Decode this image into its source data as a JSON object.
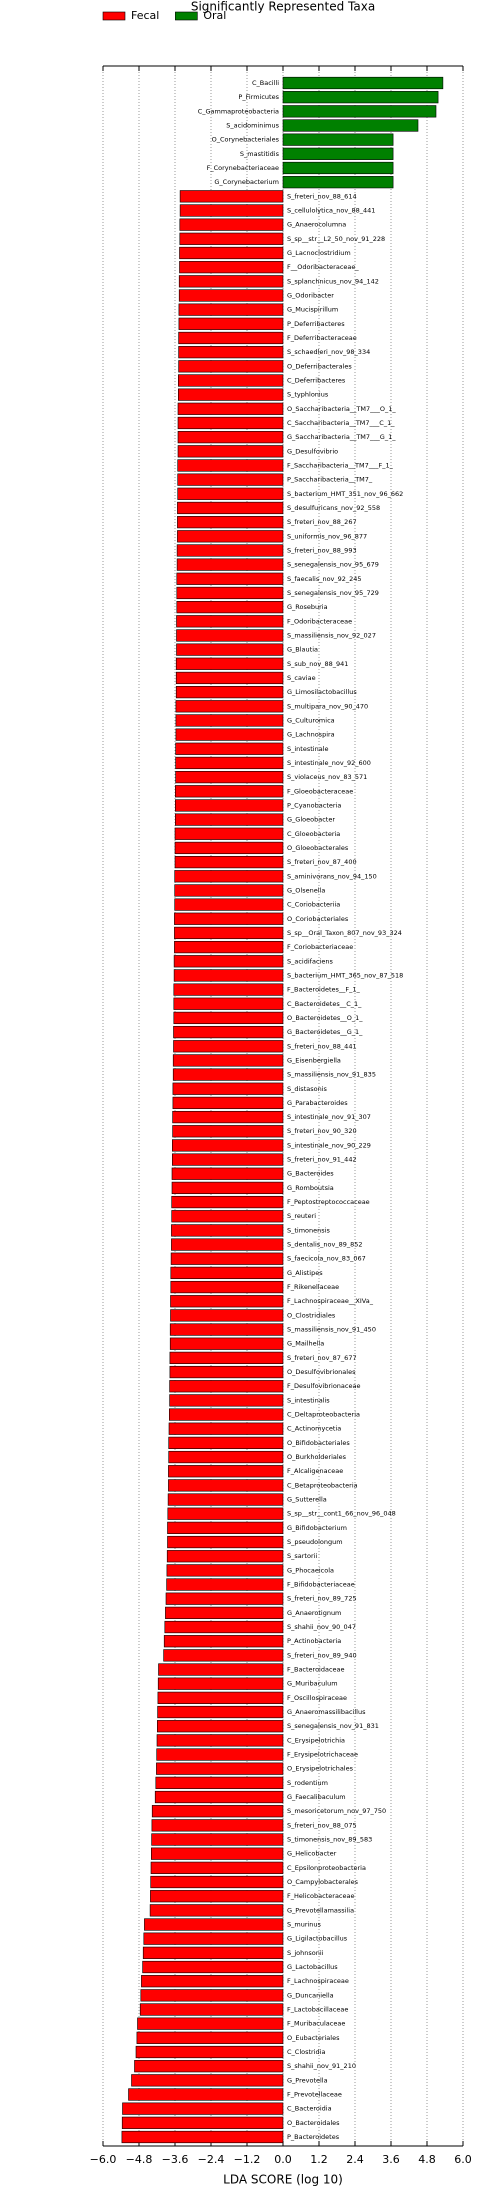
{
  "chart_data": {
    "type": "bar",
    "orientation": "horizontal",
    "title": "Significantly Represented Taxa",
    "x_label": "LDA SCORE (log 10)",
    "legend": "upper left",
    "grid": true,
    "categories": [
      "C_Bacilli",
      "P_Firmicutes",
      "C_Gammaproteobacteria",
      "S_acidominimus",
      "O_Corynebacteriales",
      "S_mastitidis",
      "F_Corynebacteriaceae",
      "G_Corynebacterium",
      "S_freteri_nov_88_614",
      "S_cellulolytica_nov_88_441",
      "G_Anaerocolumna",
      "S_sp__str__L2_50_nov_91_228",
      "G_Lacnoclostridium",
      "F__Odoribacteraceae_",
      "S_splanchnicus_nov_94_142",
      "G_Odoribacter",
      "G_Mucispirillum",
      "P_Deferribacteres",
      "F_Deferribacteraceae",
      "S_schaedleri_nov_98_334",
      "O_Deferribacterales",
      "C_Deferribacteres",
      "S_typhlonius",
      "O_Saccharibacteria__TM7___O_1_",
      "C_Saccharibacteria__TM7___C_1_",
      "G_Saccharibacteria__TM7___G_1_",
      "G_Desulfovibrio",
      "F_Saccharibacteria__TM7___F_1_",
      "P_Saccharibacteria__TM7_",
      "S_bacterium_HMT_351_nov_96_662",
      "S_desulfuricans_nov_92_558",
      "S_freteri_nov_88_267",
      "S_uniformis_nov_96_877",
      "S_freteri_nov_88_993",
      "S_senegalensis_nov_95_679",
      "S_faecalis_nov_92_245",
      "S_senegalensis_nov_95_729",
      "G_Roseburia",
      "F_Odoribacteraceae",
      "S_massiliensis_nov_92_027",
      "G_Blautia",
      "S_sub_nov_88_941",
      "S_caviae",
      "G_Limosilactobacillus",
      "S_multipara_nov_90_470",
      "G_Culturomica",
      "G_Lachnospira",
      "S_intestinale",
      "S_intestinale_nov_92_600",
      "S_violaceus_nov_83_571",
      "F_Gloeobacteraceae",
      "P_Cyanobacteria",
      "G_Gloeobacter",
      "C_Gloeobacteria",
      "O_Gloeobacterales",
      "S_freteri_nov_87_400",
      "S_aminivorans_nov_94_150",
      "G_Olsenella",
      "C_Coriobacteriia",
      "O_Coriobacteriales",
      "S_sp__Oral_Taxon_807_nov_93_324",
      "F_Coriobacteriaceae",
      "S_acidifaciens",
      "S_bacterium_HMT_365_nov_87_518",
      "F_Bacteroidetes__F_1_",
      "C_Bacteroidetes__C_1_",
      "O_Bacteroidetes__O_1_",
      "G_Bacteroidetes__G_1_",
      "S_freteri_nov_88_441",
      "G_Eisenbergiella",
      "S_massiliensis_nov_91_835",
      "S_distasonis",
      "G_Parabacteroides",
      "S_intestinale_nov_91_307",
      "S_freteri_nov_90_320",
      "S_intestinale_nov_90_229",
      "S_freteri_nov_91_442",
      "G_Bacteroides",
      "G_Romboutsia",
      "F_Peptostreptococcaceae",
      "S_reuteri",
      "S_timonensis",
      "S_dentalis_nov_89_852",
      "S_faecicola_nov_83_067",
      "G_Alistipes",
      "F_Rikenellaceae",
      "F_Lachnospiraceae__XIVa_",
      "O_Clostridiales",
      "S_massiliensis_nov_91_450",
      "G_Mailhella",
      "S_freteri_nov_87_677",
      "O_Desulfovibrionales",
      "F_Desulfovibrionaceae",
      "S_intestinalis",
      "C_Deltaproteobacteria",
      "C_Actinomycetia",
      "O_Bifidobacteriales",
      "O_Burkholderiales",
      "F_Alcaligenaceae",
      "C_Betaproteobacteria",
      "G_Sutterella",
      "S_sp__str__cont1_66_nov_96_048",
      "G_Bifidobacterium",
      "S_pseudolongum",
      "S_sartorii",
      "G_Phocaeicola",
      "F_Bifidobacteriaceae",
      "S_freteri_nov_89_725",
      "G_Anaerotignum",
      "S_shahii_nov_90_047",
      "P_Actinobacteria",
      "S_freteri_nov_89_940",
      "F_Bacteroidaceae",
      "G_Muribaculum",
      "F_Oscillospiraceae",
      "G_Anaeromassilibacillus",
      "S_senegalensis_nov_91_831",
      "C_Erysipelotrichia",
      "F_Erysipelotrichaceae",
      "O_Erysipelotrichales",
      "S_rodentium",
      "G_Faecalibaculum",
      "S_mesoricetorum_nov_97_750",
      "S_freteri_nov_88_075",
      "S_timonensis_nov_89_583",
      "G_Helicobacter",
      "C_Epsilonproteobacteria",
      "O_Campylobacterales",
      "F_Helicobacteraceae",
      "G_Prevotellamassilia",
      "S_murinus",
      "G_Ligilactobacillus",
      "S_johnsonii",
      "G_Lactobacillus",
      "F_Lachnospiraceae",
      "G_Duncaniella",
      "F_Lactobacillaceae",
      "F_Muribaculaceae",
      "O_Eubacteriales",
      "C_Clostridia",
      "S_shahii_nov_91_210",
      "G_Prevotella",
      "F_Prevotellaceae",
      "C_Bacteroidia",
      "O_Bacteroidales",
      "P_Bacteroidetes"
    ],
    "series": [
      {
        "name": "Fecal",
        "color": "#ff0000",
        "values": [
          null,
          null,
          null,
          null,
          null,
          null,
          null,
          null,
          -3.43,
          -3.43,
          -3.44,
          -3.44,
          -3.45,
          -3.45,
          -3.46,
          -3.46,
          -3.47,
          -3.47,
          -3.48,
          -3.48,
          -3.48,
          -3.49,
          -3.49,
          -3.5,
          -3.5,
          -3.5,
          -3.5,
          -3.51,
          -3.51,
          -3.51,
          -3.52,
          -3.52,
          -3.52,
          -3.53,
          -3.53,
          -3.54,
          -3.54,
          -3.54,
          -3.55,
          -3.55,
          -3.55,
          -3.56,
          -3.56,
          -3.56,
          -3.57,
          -3.57,
          -3.57,
          -3.58,
          -3.58,
          -3.58,
          -3.59,
          -3.59,
          -3.59,
          -3.6,
          -3.6,
          -3.6,
          -3.61,
          -3.61,
          -3.61,
          -3.62,
          -3.62,
          -3.62,
          -3.63,
          -3.63,
          -3.64,
          -3.64,
          -3.64,
          -3.65,
          -3.65,
          -3.66,
          -3.66,
          -3.67,
          -3.67,
          -3.68,
          -3.68,
          -3.69,
          -3.69,
          -3.7,
          -3.7,
          -3.71,
          -3.71,
          -3.72,
          -3.72,
          -3.73,
          -3.74,
          -3.74,
          -3.75,
          -3.75,
          -3.76,
          -3.76,
          -3.77,
          -3.77,
          -3.78,
          -3.78,
          -3.79,
          -3.8,
          -3.81,
          -3.81,
          -3.82,
          -3.82,
          -3.83,
          -3.84,
          -3.85,
          -3.85,
          -3.86,
          -3.87,
          -3.88,
          -3.9,
          -3.92,
          -3.94,
          -3.96,
          -3.98,
          -4.15,
          -4.16,
          -4.17,
          -4.18,
          -4.19,
          -4.2,
          -4.21,
          -4.22,
          -4.24,
          -4.26,
          -4.36,
          -4.37,
          -4.38,
          -4.39,
          -4.4,
          -4.41,
          -4.42,
          -4.43,
          -4.62,
          -4.64,
          -4.66,
          -4.68,
          -4.72,
          -4.74,
          -4.76,
          -4.85,
          -4.87,
          -4.9,
          -4.95,
          -5.05,
          -5.15,
          -5.35,
          -5.36,
          -5.37
        ]
      },
      {
        "name": "Oral",
        "color": "#008000",
        "values": [
          5.33,
          5.17,
          5.1,
          4.5,
          3.67,
          3.67,
          3.67,
          3.67,
          null,
          null,
          null,
          null,
          null,
          null,
          null,
          null,
          null,
          null,
          null,
          null,
          null,
          null,
          null,
          null,
          null,
          null,
          null,
          null,
          null,
          null,
          null,
          null,
          null,
          null,
          null,
          null,
          null,
          null,
          null,
          null,
          null,
          null,
          null,
          null,
          null,
          null,
          null,
          null,
          null,
          null,
          null,
          null,
          null,
          null,
          null,
          null,
          null,
          null,
          null,
          null,
          null,
          null,
          null,
          null,
          null,
          null,
          null,
          null,
          null,
          null,
          null,
          null,
          null,
          null,
          null,
          null,
          null,
          null,
          null,
          null,
          null,
          null,
          null,
          null,
          null,
          null,
          null,
          null,
          null,
          null,
          null,
          null,
          null,
          null,
          null,
          null,
          null,
          null,
          null,
          null,
          null,
          null,
          null,
          null,
          null,
          null,
          null,
          null,
          null,
          null,
          null,
          null,
          null,
          null,
          null,
          null,
          null,
          null,
          null,
          null,
          null,
          null,
          null,
          null,
          null,
          null,
          null,
          null,
          null,
          null,
          null,
          null,
          null,
          null,
          null,
          null,
          null,
          null,
          null,
          null,
          null,
          null,
          null,
          null,
          null,
          null
        ]
      }
    ],
    "xlim": [
      -6.0,
      6.0
    ],
    "xticks": [
      {
        "value": -6.0,
        "label": "−6.0"
      },
      {
        "value": -4.8,
        "label": "−4.8"
      },
      {
        "value": -3.6,
        "label": "−3.6"
      },
      {
        "value": -2.4,
        "label": "−2.4"
      },
      {
        "value": -1.2,
        "label": "−1.2"
      },
      {
        "value": 0,
        "label": "0.0"
      },
      1.2,
      2.4,
      3.6,
      4.8,
      {
        "value": 6.0,
        "label": "6.0"
      }
    ]
  }
}
